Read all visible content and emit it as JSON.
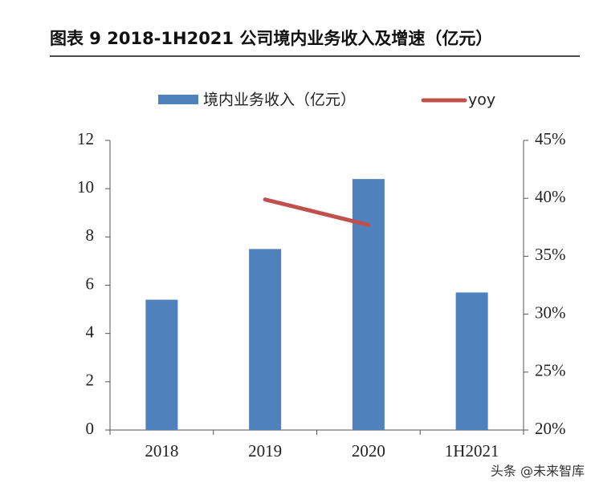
{
  "chart_data": {
    "type": "bar-line",
    "title": "图表 9 2018-1H2021 公司境内业务收入及增速（亿元）",
    "watermark": "头条 @未来智库",
    "categories": [
      "2018",
      "2019",
      "2020",
      "1H2021"
    ],
    "series": [
      {
        "name": "境内业务收入（亿元）",
        "type": "bar",
        "color": "#4f81bd",
        "values": [
          5.4,
          7.5,
          10.4,
          5.7
        ]
      },
      {
        "name": "yoy",
        "type": "line",
        "axis": "y2",
        "color": "#c0504d",
        "values": [
          null,
          39.9,
          37.7,
          null
        ]
      }
    ],
    "ylim": [
      0,
      12
    ],
    "yticks": [
      0,
      2,
      4,
      6,
      8,
      10,
      12
    ],
    "y2lim": [
      20,
      45
    ],
    "y2ticks": [
      {
        "value": 20,
        "label": "20%"
      },
      {
        "value": 25,
        "label": "25%"
      },
      {
        "value": 30,
        "label": "30%"
      },
      {
        "value": 35,
        "label": "35%"
      },
      {
        "value": 40,
        "label": "40%"
      },
      {
        "value": 45,
        "label": "45%"
      }
    ],
    "grid": false,
    "legend": "top"
  }
}
